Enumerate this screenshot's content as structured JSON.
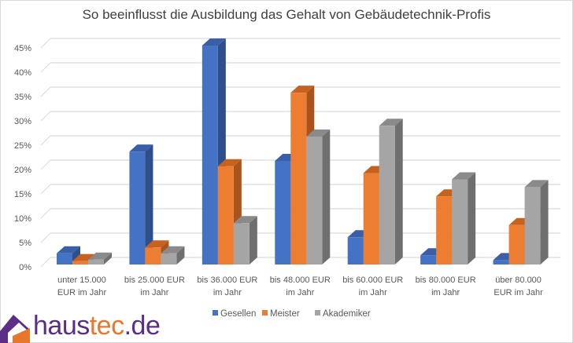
{
  "chart_data": {
    "type": "bar",
    "style": "3d-clustered-column",
    "title": "So beeinflusst die Ausbildung das Gehalt von Gebäudetechnik-Profis",
    "xlabel": "",
    "ylabel": "",
    "ylim": [
      0,
      45
    ],
    "yticks": [
      0,
      5,
      10,
      15,
      20,
      25,
      30,
      35,
      40,
      45
    ],
    "ytick_labels": [
      "0%",
      "5%",
      "10%",
      "15%",
      "20%",
      "25%",
      "30%",
      "35%",
      "40%",
      "45%"
    ],
    "grid": true,
    "legend_position": "bottom",
    "categories": [
      [
        "unter 15.000",
        "EUR im Jahr"
      ],
      [
        "bis 25.000 EUR",
        "im Jahr"
      ],
      [
        "bis 36.000 EUR",
        "im Jahr"
      ],
      [
        "bis 48.000 EUR",
        "im Jahr"
      ],
      [
        "bis 60.000 EUR",
        "im Jahr"
      ],
      [
        "bis 80.000 EUR",
        "im Jahr"
      ],
      [
        "über 80.000",
        "EUR im Jahr"
      ]
    ],
    "series": [
      {
        "name": "Gesellen",
        "color": "#4472c4",
        "side": "#2f4f8a",
        "top": "#3a5fa6",
        "values": [
          2.3,
          23.2,
          45.0,
          21.3,
          5.6,
          1.9,
          0.9
        ]
      },
      {
        "name": "Meister",
        "color": "#ed7d31",
        "side": "#a8541c",
        "top": "#c6621f",
        "values": [
          0.7,
          3.5,
          20.2,
          35.3,
          18.8,
          14.0,
          8.1
        ]
      },
      {
        "name": "Akademiker",
        "color": "#a5a5a5",
        "side": "#6f6f6f",
        "top": "#8a8a8a",
        "values": [
          1.0,
          2.3,
          8.5,
          26.3,
          28.5,
          17.5,
          15.9
        ]
      }
    ]
  },
  "logo": {
    "haus": "haus",
    "tec": "tec",
    "de": ".de",
    "roof_color": "#5b2d86",
    "wall_color": "#e8772e"
  }
}
